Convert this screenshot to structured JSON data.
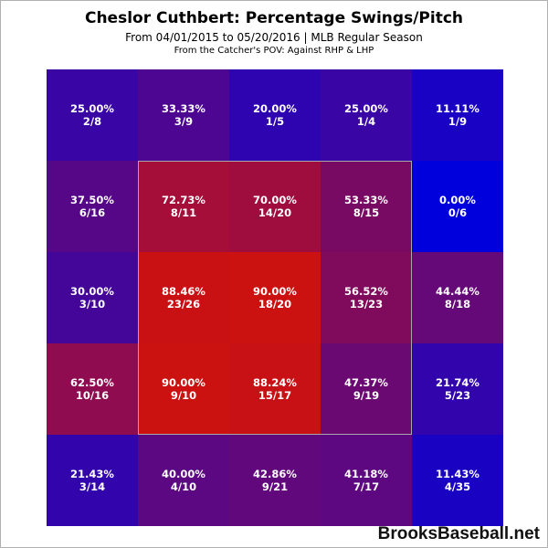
{
  "header": {
    "title": "Cheslor Cuthbert: Percentage Swings/Pitch",
    "subtitle": "From 04/01/2015 to 05/20/2016 | MLB Regular Season",
    "note": "From the Catcher's POV:  Against RHP & LHP"
  },
  "watermark": "BrooksBaseball.net",
  "colors": {
    "background": "#ffffff",
    "high": "#cc1111",
    "low": "#0000dd",
    "text": "#ffffff"
  },
  "chart_data": {
    "type": "heatmap",
    "rows": 5,
    "cols": 5,
    "strike_zone": "inner 3x3",
    "cells": [
      [
        {
          "pct": "25.00%",
          "frac": "2/8",
          "value": 25.0
        },
        {
          "pct": "33.33%",
          "frac": "3/9",
          "value": 33.33
        },
        {
          "pct": "20.00%",
          "frac": "1/5",
          "value": 20.0
        },
        {
          "pct": "25.00%",
          "frac": "1/4",
          "value": 25.0
        },
        {
          "pct": "11.11%",
          "frac": "1/9",
          "value": 11.11
        }
      ],
      [
        {
          "pct": "37.50%",
          "frac": "6/16",
          "value": 37.5
        },
        {
          "pct": "72.73%",
          "frac": "8/11",
          "value": 72.73
        },
        {
          "pct": "70.00%",
          "frac": "14/20",
          "value": 70.0
        },
        {
          "pct": "53.33%",
          "frac": "8/15",
          "value": 53.33
        },
        {
          "pct": "0.00%",
          "frac": "0/6",
          "value": 0.0
        }
      ],
      [
        {
          "pct": "30.00%",
          "frac": "3/10",
          "value": 30.0
        },
        {
          "pct": "88.46%",
          "frac": "23/26",
          "value": 88.46
        },
        {
          "pct": "90.00%",
          "frac": "18/20",
          "value": 90.0
        },
        {
          "pct": "56.52%",
          "frac": "13/23",
          "value": 56.52
        },
        {
          "pct": "44.44%",
          "frac": "8/18",
          "value": 44.44
        }
      ],
      [
        {
          "pct": "62.50%",
          "frac": "10/16",
          "value": 62.5
        },
        {
          "pct": "90.00%",
          "frac": "9/10",
          "value": 90.0
        },
        {
          "pct": "88.24%",
          "frac": "15/17",
          "value": 88.24
        },
        {
          "pct": "47.37%",
          "frac": "9/19",
          "value": 47.37
        },
        {
          "pct": "21.74%",
          "frac": "5/23",
          "value": 21.74
        }
      ],
      [
        {
          "pct": "21.43%",
          "frac": "3/14",
          "value": 21.43
        },
        {
          "pct": "40.00%",
          "frac": "4/10",
          "value": 40.0
        },
        {
          "pct": "42.86%",
          "frac": "9/21",
          "value": 42.86
        },
        {
          "pct": "41.18%",
          "frac": "7/17",
          "value": 41.18
        },
        {
          "pct": "11.43%",
          "frac": "4/35",
          "value": 11.43
        }
      ]
    ]
  }
}
